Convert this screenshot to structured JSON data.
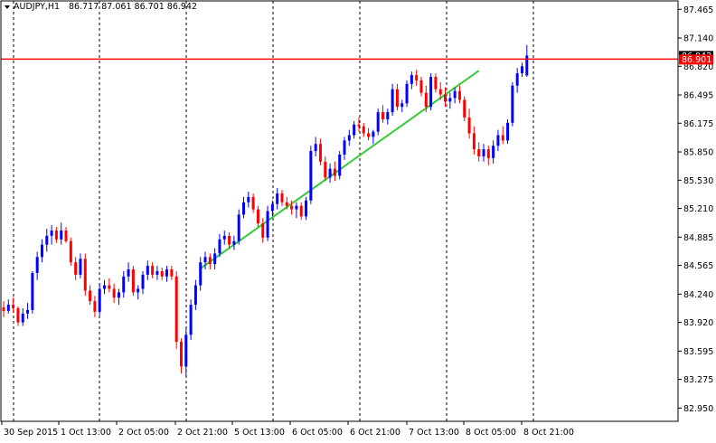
{
  "header": {
    "symbol_timeframe": "AUDJPY,H1",
    "ohlc": "86.717 87.061 86.701 86.942"
  },
  "colors": {
    "background": "#ffffff",
    "bull_candle": "#0000ff",
    "bear_candle": "#ff0000",
    "trendline": "#33cc33",
    "hline": "#ff0000",
    "price_label_bg": "#ff0000",
    "grid": "#000000"
  },
  "chart_data": {
    "type": "candlestick",
    "symbol": "AUDJPY",
    "timeframe": "H1",
    "grid": true,
    "grid_style": "dashed vertical",
    "ylim": [
      82.8,
      87.56
    ],
    "y_ticks": [
      "87.465",
      "87.140",
      "86.820",
      "86.495",
      "86.175",
      "85.850",
      "85.530",
      "85.210",
      "84.885",
      "84.565",
      "84.240",
      "83.920",
      "83.595",
      "83.275",
      "82.950"
    ],
    "x_tick_labels": [
      "30 Sep 2015",
      "1 Oct 13:00",
      "2 Oct 05:00",
      "2 Oct 21:00",
      "5 Oct 13:00",
      "6 Oct 05:00",
      "6 Oct 21:00",
      "7 Oct 13:00",
      "8 Oct 05:00",
      "8 Oct 21:00"
    ],
    "horizontal_line": {
      "price": 86.901,
      "label": "86.901"
    },
    "current_price_label": "86.942",
    "trendline": {
      "from": {
        "bar": 41,
        "price": 84.53
      },
      "to": {
        "bar": 99,
        "price": 86.77
      }
    },
    "candles": [
      [
        84.09,
        84.16,
        83.98,
        84.05
      ],
      [
        84.05,
        84.18,
        84.02,
        84.12
      ],
      [
        84.12,
        84.2,
        84.03,
        84.08
      ],
      [
        84.08,
        84.1,
        83.88,
        83.92
      ],
      [
        83.92,
        84.08,
        83.88,
        84.02
      ],
      [
        84.02,
        84.14,
        83.96,
        84.06
      ],
      [
        84.06,
        84.5,
        84.02,
        84.48
      ],
      [
        84.48,
        84.72,
        84.4,
        84.66
      ],
      [
        84.66,
        84.86,
        84.6,
        84.8
      ],
      [
        84.8,
        84.98,
        84.72,
        84.9
      ],
      [
        84.9,
        85.02,
        84.8,
        84.96
      ],
      [
        84.96,
        85.0,
        84.82,
        84.86
      ],
      [
        84.86,
        85.05,
        84.8,
        84.96
      ],
      [
        84.96,
        85.0,
        84.82,
        84.84
      ],
      [
        84.84,
        84.88,
        84.56,
        84.6
      ],
      [
        84.6,
        84.66,
        84.4,
        84.46
      ],
      [
        84.46,
        84.7,
        84.42,
        84.64
      ],
      [
        84.64,
        84.7,
        84.22,
        84.28
      ],
      [
        84.28,
        84.34,
        84.12,
        84.16
      ],
      [
        84.16,
        84.22,
        83.98,
        84.04
      ],
      [
        84.04,
        84.36,
        84.0,
        84.3
      ],
      [
        84.3,
        84.4,
        84.24,
        84.34
      ],
      [
        84.34,
        84.42,
        84.26,
        84.3
      ],
      [
        84.3,
        84.36,
        84.14,
        84.2
      ],
      [
        84.2,
        84.3,
        84.12,
        84.26
      ],
      [
        84.26,
        84.5,
        84.2,
        84.44
      ],
      [
        84.44,
        84.6,
        84.38,
        84.52
      ],
      [
        84.52,
        84.56,
        84.22,
        84.26
      ],
      [
        84.26,
        84.34,
        84.18,
        84.3
      ],
      [
        84.3,
        84.5,
        84.24,
        84.46
      ],
      [
        84.46,
        84.62,
        84.4,
        84.56
      ],
      [
        84.56,
        84.6,
        84.42,
        84.46
      ],
      [
        84.46,
        84.56,
        84.4,
        84.5
      ],
      [
        84.5,
        84.54,
        84.4,
        84.44
      ],
      [
        84.44,
        84.56,
        84.38,
        84.52
      ],
      [
        84.52,
        84.56,
        84.4,
        84.44
      ],
      [
        84.44,
        84.5,
        83.62,
        83.7
      ],
      [
        83.7,
        83.74,
        83.34,
        83.42
      ],
      [
        83.42,
        83.86,
        83.3,
        83.78
      ],
      [
        83.78,
        84.18,
        83.72,
        84.12
      ],
      [
        84.12,
        84.4,
        84.06,
        84.34
      ],
      [
        84.34,
        84.66,
        84.28,
        84.6
      ],
      [
        84.6,
        84.72,
        84.52,
        84.66
      ],
      [
        84.66,
        84.7,
        84.52,
        84.58
      ],
      [
        84.58,
        84.76,
        84.52,
        84.7
      ],
      [
        84.7,
        84.92,
        84.66,
        84.86
      ],
      [
        84.86,
        84.96,
        84.8,
        84.9
      ],
      [
        84.9,
        84.94,
        84.76,
        84.8
      ],
      [
        84.8,
        84.9,
        84.74,
        84.84
      ],
      [
        84.84,
        85.2,
        84.8,
        85.14
      ],
      [
        85.14,
        85.34,
        85.1,
        85.28
      ],
      [
        85.28,
        85.4,
        85.22,
        85.34
      ],
      [
        85.34,
        85.38,
        85.16,
        85.2
      ],
      [
        85.2,
        85.24,
        85.0,
        85.04
      ],
      [
        85.04,
        85.1,
        84.82,
        84.88
      ],
      [
        84.88,
        85.24,
        84.84,
        85.18
      ],
      [
        85.18,
        85.3,
        85.12,
        85.26
      ],
      [
        85.26,
        85.44,
        85.2,
        85.38
      ],
      [
        85.38,
        85.42,
        85.24,
        85.28
      ],
      [
        85.28,
        85.34,
        85.2,
        85.24
      ],
      [
        85.24,
        85.3,
        85.14,
        85.2
      ],
      [
        85.2,
        85.28,
        85.1,
        85.24
      ],
      [
        85.24,
        85.28,
        85.08,
        85.12
      ],
      [
        85.12,
        85.34,
        85.08,
        85.3
      ],
      [
        85.3,
        85.92,
        85.26,
        85.86
      ],
      [
        85.86,
        86.02,
        85.8,
        85.94
      ],
      [
        85.94,
        86.0,
        85.7,
        85.74
      ],
      [
        85.74,
        85.8,
        85.52,
        85.56
      ],
      [
        85.56,
        85.72,
        85.5,
        85.66
      ],
      [
        85.66,
        85.74,
        85.52,
        85.58
      ],
      [
        85.58,
        85.86,
        85.54,
        85.82
      ],
      [
        85.82,
        86.02,
        85.76,
        85.98
      ],
      [
        85.98,
        86.1,
        85.92,
        86.04
      ],
      [
        86.04,
        86.2,
        86.0,
        86.16
      ],
      [
        86.16,
        86.24,
        86.08,
        86.14
      ],
      [
        86.14,
        86.18,
        86.02,
        86.06
      ],
      [
        86.06,
        86.12,
        85.98,
        86.02
      ],
      [
        86.02,
        86.1,
        85.94,
        86.08
      ],
      [
        86.08,
        86.34,
        86.04,
        86.3
      ],
      [
        86.3,
        86.38,
        86.18,
        86.22
      ],
      [
        86.22,
        86.34,
        86.16,
        86.3
      ],
      [
        86.3,
        86.62,
        86.26,
        86.56
      ],
      [
        86.56,
        86.62,
        86.32,
        86.36
      ],
      [
        86.36,
        86.44,
        86.3,
        86.4
      ],
      [
        86.4,
        86.66,
        86.36,
        86.62
      ],
      [
        86.62,
        86.76,
        86.56,
        86.72
      ],
      [
        86.72,
        86.78,
        86.6,
        86.66
      ],
      [
        86.66,
        86.7,
        86.48,
        86.52
      ],
      [
        86.52,
        86.6,
        86.3,
        86.36
      ],
      [
        86.36,
        86.74,
        86.32,
        86.7
      ],
      [
        86.7,
        86.74,
        86.52,
        86.56
      ],
      [
        86.56,
        86.64,
        86.44,
        86.5
      ],
      [
        86.5,
        86.58,
        86.36,
        86.42
      ],
      [
        86.42,
        86.52,
        86.34,
        86.46
      ],
      [
        86.46,
        86.58,
        86.4,
        86.54
      ],
      [
        86.54,
        86.6,
        86.4,
        86.44
      ],
      [
        86.44,
        86.48,
        86.2,
        86.24
      ],
      [
        86.24,
        86.34,
        86.0,
        86.06
      ],
      [
        86.06,
        86.14,
        85.82,
        85.88
      ],
      [
        85.88,
        85.96,
        85.74,
        85.8
      ],
      [
        85.8,
        85.94,
        85.74,
        85.88
      ],
      [
        85.88,
        85.92,
        85.7,
        85.78
      ],
      [
        85.78,
        85.98,
        85.72,
        85.92
      ],
      [
        85.92,
        86.1,
        85.86,
        86.04
      ],
      [
        86.04,
        86.14,
        85.94,
        85.98
      ],
      [
        85.98,
        86.22,
        85.94,
        86.18
      ],
      [
        86.18,
        86.64,
        86.14,
        86.6
      ],
      [
        86.6,
        86.8,
        86.52,
        86.74
      ],
      [
        86.74,
        86.86,
        86.7,
        86.82
      ],
      [
        86.717,
        87.061,
        86.701,
        86.942
      ]
    ]
  }
}
